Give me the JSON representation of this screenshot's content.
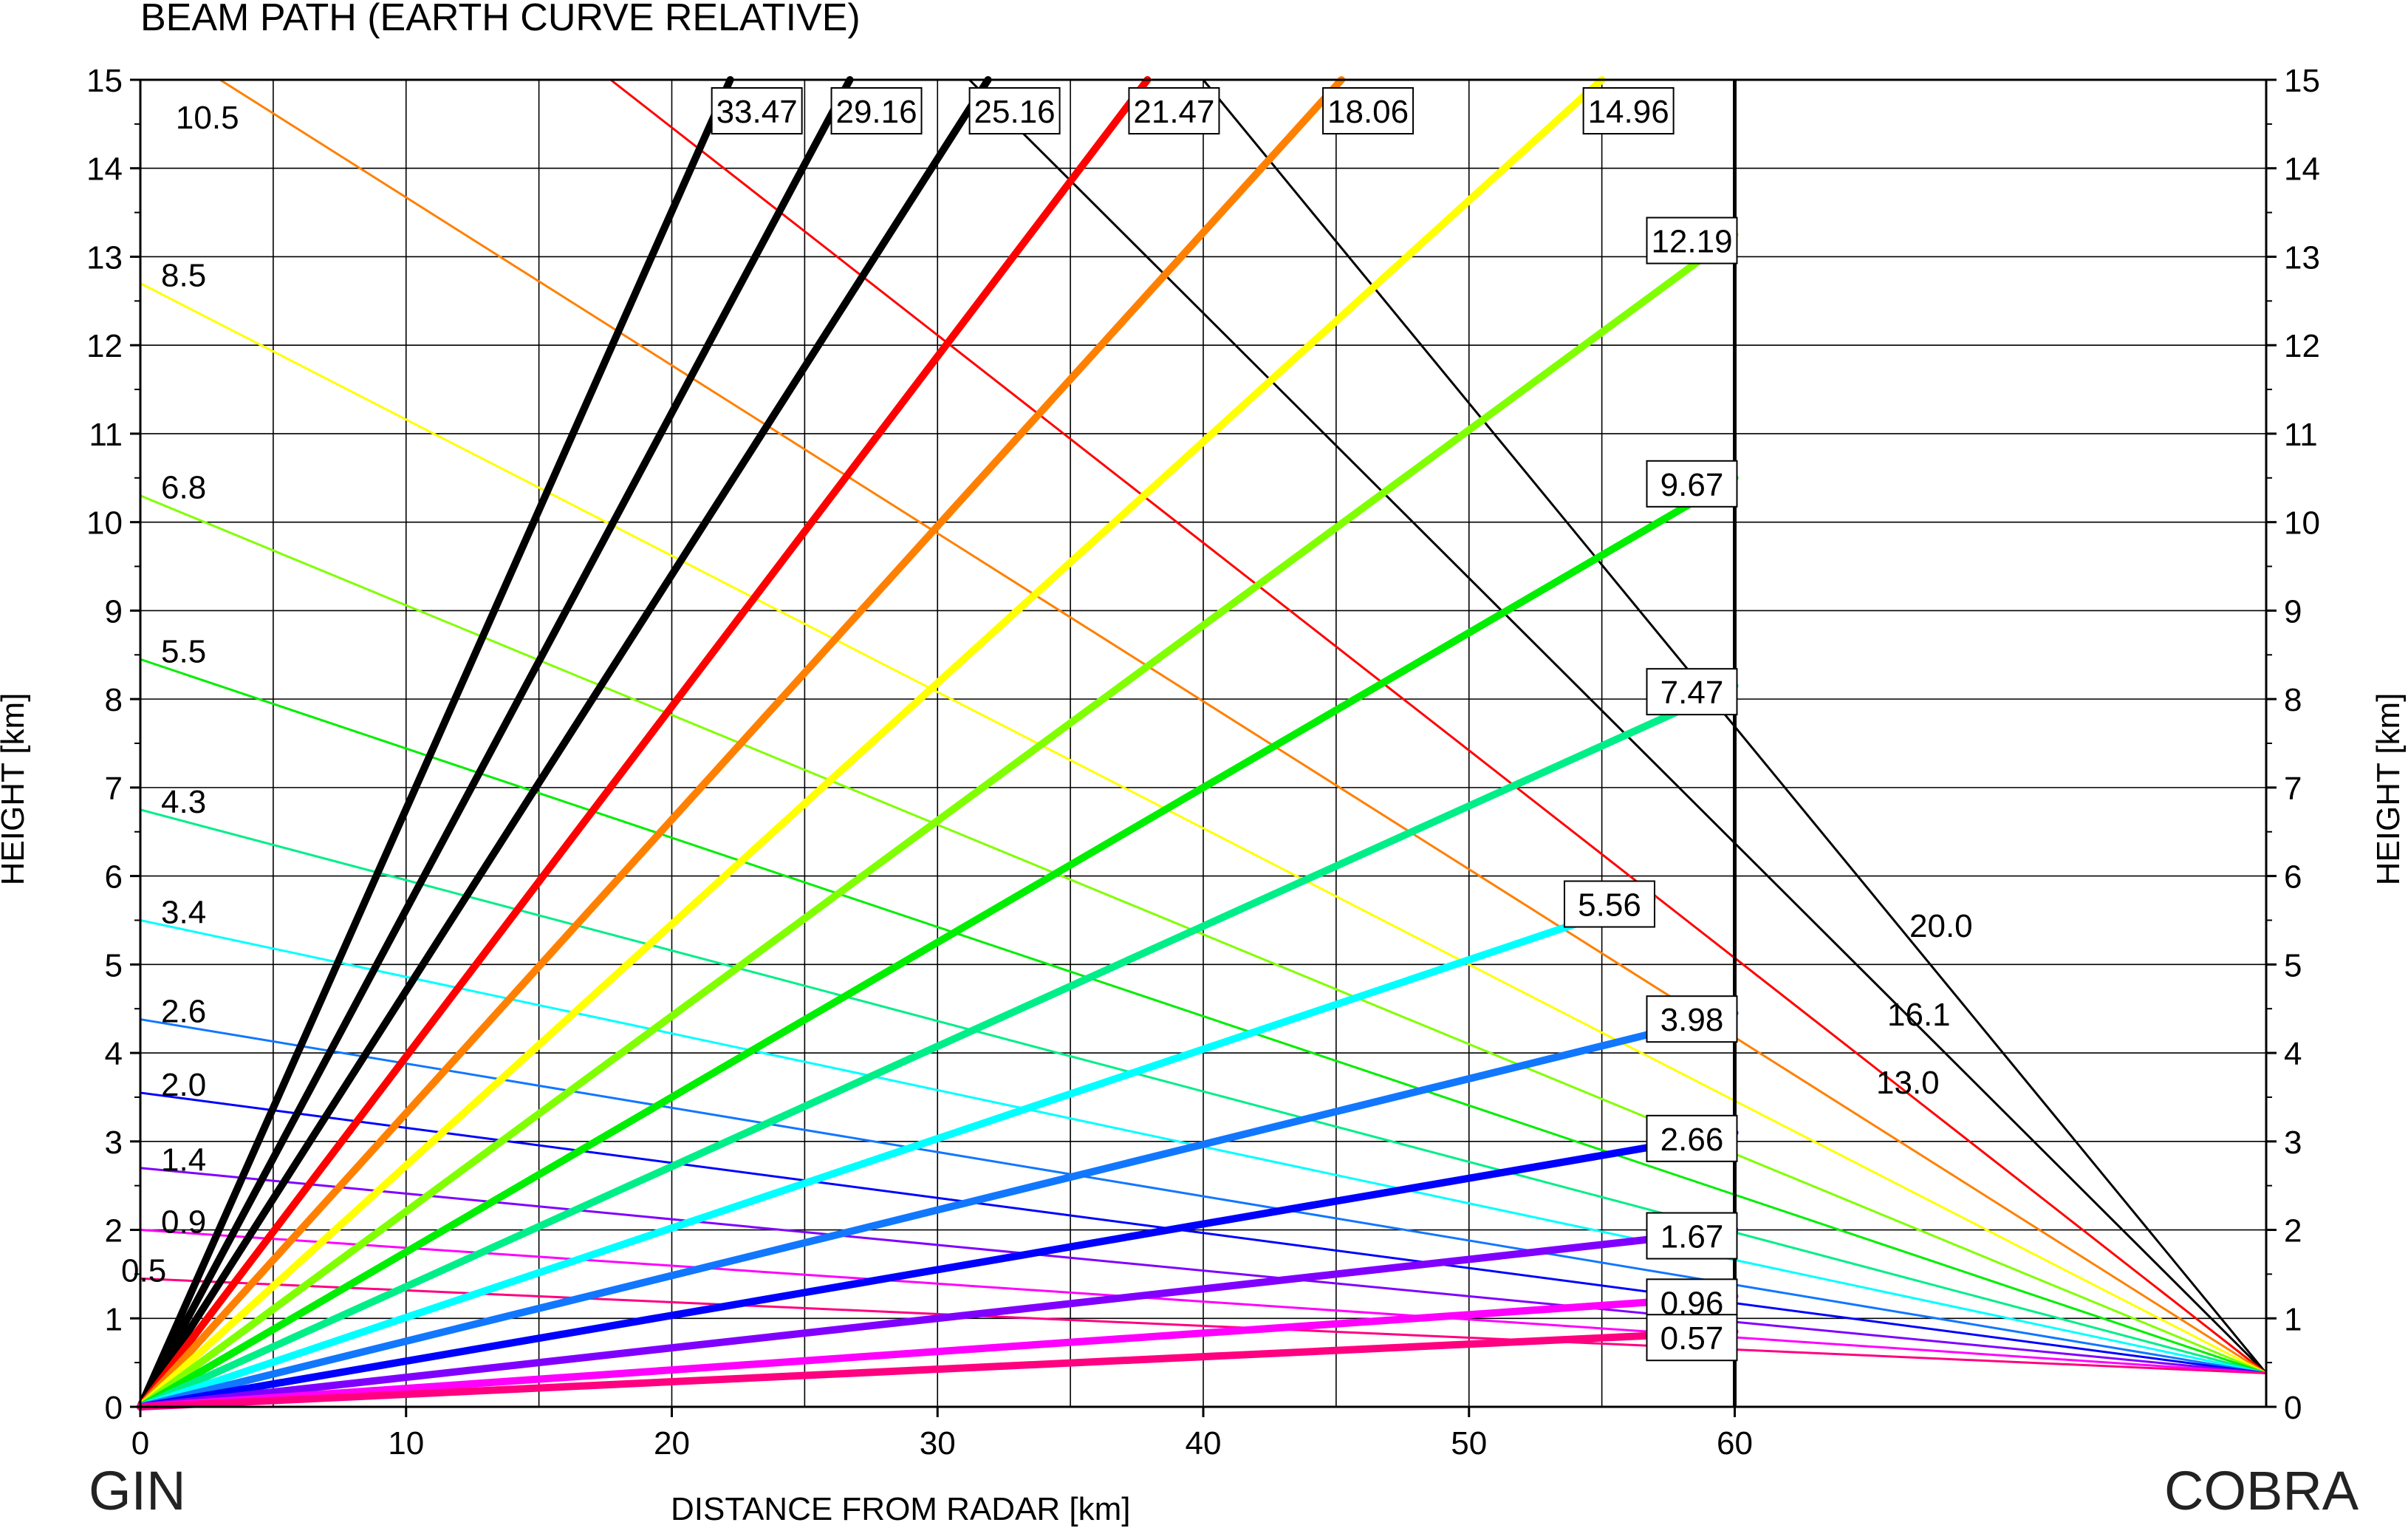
{
  "chart_data": {
    "type": "line",
    "title": "BEAM PATH (EARTH CURVE RELATIVE)",
    "xlabel": "DISTANCE FROM RADAR [km]",
    "ylabel": "HEIGHT [km]",
    "ylabel_right": "HEIGHT [km]",
    "xlim": [
      0,
      80
    ],
    "ylim": [
      0,
      15
    ],
    "x_ticks": [
      0,
      10,
      20,
      30,
      40,
      50,
      60
    ],
    "y_ticks": [
      0,
      1,
      2,
      3,
      4,
      5,
      6,
      7,
      8,
      9,
      10,
      11,
      12,
      13,
      14,
      15
    ],
    "grid": true,
    "left_station": "GIN",
    "right_station": "COBRA",
    "gin_elevations": [
      {
        "label": "33.47",
        "color": "#000000",
        "end": [
          22.2,
          15
        ]
      },
      {
        "label": "29.16",
        "color": "#000000",
        "end": [
          26.7,
          15
        ]
      },
      {
        "label": "25.16",
        "color": "#000000",
        "end": [
          31.9,
          15
        ]
      },
      {
        "label": "21.47",
        "color": "#ff0000",
        "end": [
          37.9,
          15
        ]
      },
      {
        "label": "18.06",
        "color": "#ff8000",
        "end": [
          45.2,
          15
        ]
      },
      {
        "label": "14.96",
        "color": "#ffff00",
        "end": [
          55.0,
          15
        ]
      },
      {
        "label": "12.19",
        "color": "#80ff00",
        "end": [
          60,
          13.25
        ]
      },
      {
        "label": "9.67",
        "color": "#00ee00",
        "end": [
          60,
          10.5
        ]
      },
      {
        "label": "7.47",
        "color": "#00ee88",
        "end": [
          60,
          8.15
        ]
      },
      {
        "label": "5.56",
        "color": "#00ffff",
        "end": [
          56.9,
          5.75
        ]
      },
      {
        "label": "3.98",
        "color": "#1177ff",
        "end": [
          60,
          4.45
        ]
      },
      {
        "label": "2.66",
        "color": "#0000ff",
        "end": [
          60,
          3.1
        ]
      },
      {
        "label": "1.67",
        "color": "#8000ff",
        "end": [
          60,
          2.0
        ]
      },
      {
        "label": "0.96",
        "color": "#ff00ff",
        "end": [
          60,
          1.25
        ]
      },
      {
        "label": "0.57",
        "color": "#ff0080",
        "end": [
          60,
          0.85
        ]
      }
    ],
    "cobra_elevations": [
      {
        "label": "20.0",
        "color": "#000000",
        "start": [
          40.0,
          15
        ]
      },
      {
        "label": "16.1",
        "color": "#000000",
        "start": [
          31.2,
          15
        ]
      },
      {
        "label": "13.0",
        "color": "#ff0000",
        "start": [
          17.7,
          15
        ]
      },
      {
        "label": "10.5",
        "color": "#ff8000",
        "start": [
          3.0,
          15
        ]
      },
      {
        "label": "8.5",
        "color": "#ffff00",
        "start": [
          0,
          12.7
        ]
      },
      {
        "label": "6.8",
        "color": "#80ff00",
        "start": [
          0,
          10.3
        ]
      },
      {
        "label": "5.5",
        "color": "#00ee00",
        "start": [
          0,
          8.45
        ]
      },
      {
        "label": "4.3",
        "color": "#00ee88",
        "start": [
          0,
          6.75
        ]
      },
      {
        "label": "3.4",
        "color": "#00ffff",
        "start": [
          0,
          5.5
        ]
      },
      {
        "label": "2.6",
        "color": "#1177ff",
        "start": [
          0,
          4.38
        ]
      },
      {
        "label": "2.0",
        "color": "#0000ff",
        "start": [
          0,
          3.55
        ]
      },
      {
        "label": "1.4",
        "color": "#8000ff",
        "start": [
          0,
          2.7
        ]
      },
      {
        "label": "0.9",
        "color": "#ff00ff",
        "start": [
          0,
          2.0
        ]
      },
      {
        "label": "0.5",
        "color": "#ff0080",
        "start": [
          0,
          1.45
        ]
      }
    ],
    "gin_origin": [
      0,
      0
    ],
    "cobra_origin": [
      80,
      0.38
    ],
    "range_limit_x": 60
  }
}
